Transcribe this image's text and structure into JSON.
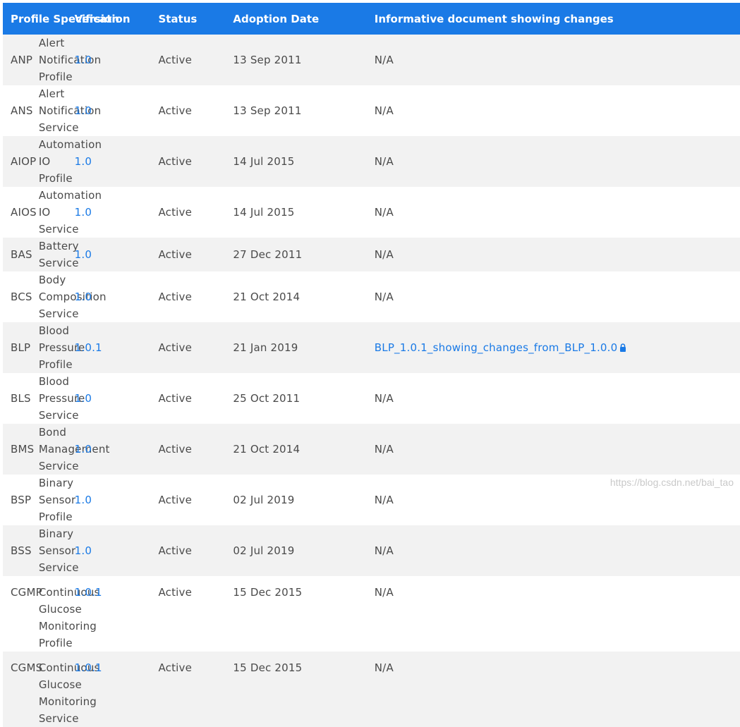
{
  "table": {
    "headers": {
      "spec": "Profile Specification",
      "version": "Version",
      "status": "Status",
      "date": "Adoption Date",
      "doc": "Informative document showing changes"
    },
    "rows": [
      {
        "abbr": "ANP",
        "name": "Alert Notification Profile",
        "version": "1.0",
        "status": "Active",
        "date": "13 Sep 2011",
        "doc": "N/A"
      },
      {
        "abbr": "ANS",
        "name": "Alert Notification Service",
        "version": "1.0",
        "status": "Active",
        "date": "13 Sep 2011",
        "doc": "N/A"
      },
      {
        "abbr": "AIOP",
        "name": "Automation IO Profile",
        "version": "1.0",
        "status": "Active",
        "date": "14 Jul 2015",
        "doc": "N/A"
      },
      {
        "abbr": "AIOS",
        "name": "Automation IO Service",
        "version": "1.0",
        "status": "Active",
        "date": "14 Jul 2015",
        "doc": "N/A"
      },
      {
        "abbr": "BAS",
        "name": "Battery Service",
        "version": "1.0",
        "status": "Active",
        "date": "27 Dec 2011",
        "doc": "N/A"
      },
      {
        "abbr": "BCS",
        "name": "Body Composition Service",
        "version": "1.0",
        "status": "Active",
        "date": "21 Oct 2014",
        "doc": "N/A"
      },
      {
        "abbr": "BLP",
        "name": "Blood Pressure Profile",
        "version": "1.0.1",
        "status": "Active",
        "date": "21 Jan 2019",
        "doc": "BLP_1.0.1_showing_changes_from_BLP_1.0.0"
      },
      {
        "abbr": "BLS",
        "name": "Blood Pressure Service",
        "version": "1.0",
        "status": "Active",
        "date": "25 Oct 2011",
        "doc": "N/A"
      },
      {
        "abbr": "BMS",
        "name": "Bond Management Service",
        "version": "1.0",
        "status": "Active",
        "date": "21 Oct 2014",
        "doc": "N/A"
      },
      {
        "abbr": "BSP",
        "name": "Binary Sensor Profile",
        "version": "1.0",
        "status": "Active",
        "date": "02 Jul 2019",
        "doc": "N/A"
      },
      {
        "abbr": "BSS",
        "name": "Binary Sensor Service",
        "version": "1.0",
        "status": "Active",
        "date": "02 Jul 2019",
        "doc": "N/A"
      },
      {
        "abbr": "CGMP",
        "name": "Continuous Glucose Monitoring",
        "name2": "Profile",
        "version": "1.0.1",
        "status": "Active",
        "date": "15 Dec 2015",
        "doc": "N/A"
      },
      {
        "abbr": "CGMS",
        "name": "Continuous Glucose Monitoring",
        "name2": "Service",
        "version": "1.0.1",
        "status": "Active",
        "date": "15 Dec 2015",
        "doc": "N/A"
      }
    ]
  },
  "icons": {
    "lock": "lock-icon"
  },
  "watermark": "https://blog.csdn.net/bai_tao",
  "colors": {
    "header_bg": "#1a7ae6",
    "link": "#1a7ae6",
    "stripe": "#f2f2f2",
    "text": "#4a4a4a"
  }
}
